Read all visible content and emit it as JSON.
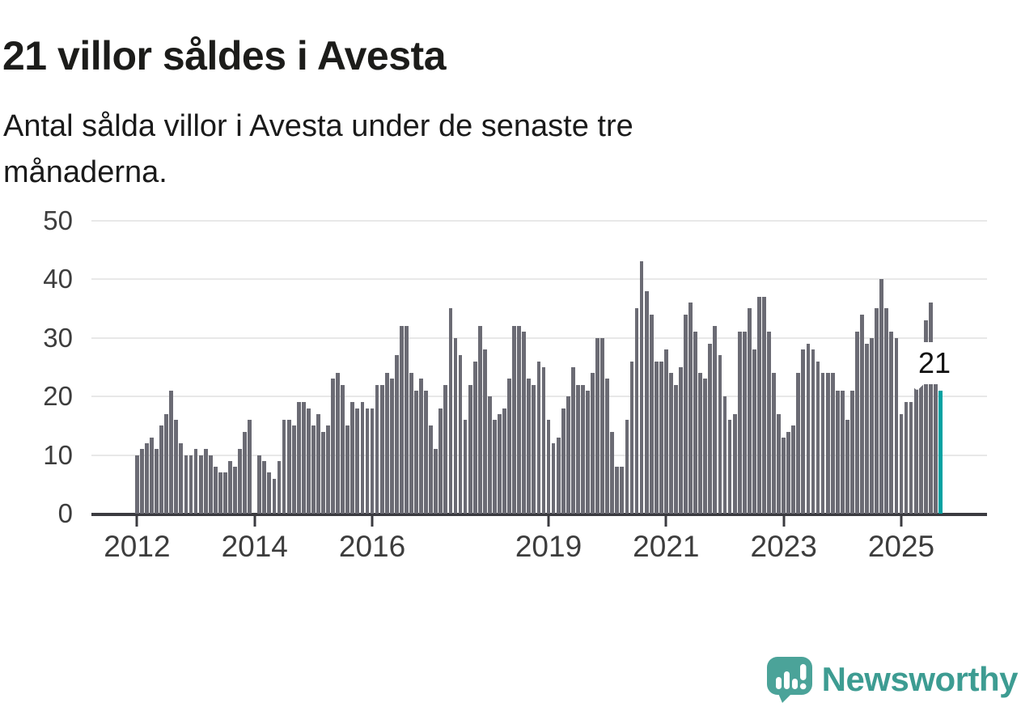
{
  "title": "21 villor såldes i Avesta",
  "subtitle": "Antal sålda villor i Avesta under de senaste tre månaderna.",
  "annotation": {
    "label": "21"
  },
  "branding": {
    "name": "Newsworthy",
    "icon": "newsworthy-logo-icon",
    "wordmark_color": "#3D9C92",
    "icon_color": "#4BA399"
  },
  "chart_data": {
    "type": "bar",
    "title": "21 villor såldes i Avesta",
    "subtitle": "Antal sålda villor i Avesta under de senaste tre månaderna.",
    "unit": "sålda villor (rullande tre månader)",
    "frequency": "monthly",
    "x_start": "2012-01",
    "x_end": "2025-09",
    "ylim": [
      0,
      50
    ],
    "yticks": [
      0,
      10,
      20,
      30,
      40,
      50
    ],
    "xtick_labels": [
      "2012",
      "2014",
      "2016",
      "2019",
      "2021",
      "2023",
      "2025"
    ],
    "grid": true,
    "bar_color": "#6B6B74",
    "highlight_color": "#00A2A2",
    "highlight_last": true,
    "last_value_label": "21",
    "values": [
      10,
      11,
      12,
      13,
      11,
      15,
      17,
      21,
      16,
      12,
      10,
      10,
      11,
      10,
      11,
      10,
      8,
      7,
      7,
      9,
      8,
      11,
      14,
      16,
      0,
      10,
      9,
      7,
      6,
      9,
      16,
      16,
      15,
      19,
      19,
      18,
      15,
      17,
      14,
      15,
      23,
      24,
      22,
      15,
      19,
      18,
      19,
      18,
      18,
      22,
      22,
      24,
      23,
      27,
      32,
      32,
      24,
      21,
      23,
      21,
      15,
      11,
      18,
      22,
      35,
      30,
      27,
      16,
      22,
      26,
      32,
      28,
      20,
      16,
      17,
      18,
      23,
      32,
      32,
      31,
      23,
      22,
      26,
      25,
      16,
      12,
      13,
      18,
      20,
      25,
      22,
      22,
      21,
      24,
      30,
      30,
      23,
      14,
      8,
      8,
      16,
      26,
      35,
      43,
      38,
      34,
      26,
      26,
      28,
      24,
      22,
      25,
      34,
      36,
      31,
      24,
      23,
      29,
      32,
      27,
      20,
      16,
      17,
      31,
      31,
      35,
      28,
      37,
      37,
      31,
      24,
      17,
      13,
      14,
      15,
      24,
      28,
      29,
      28,
      26,
      24,
      24,
      24,
      21,
      21,
      16,
      21,
      31,
      34,
      29,
      30,
      35,
      40,
      35,
      31,
      30,
      17,
      19,
      19,
      25,
      29,
      33,
      36,
      23,
      21
    ]
  }
}
